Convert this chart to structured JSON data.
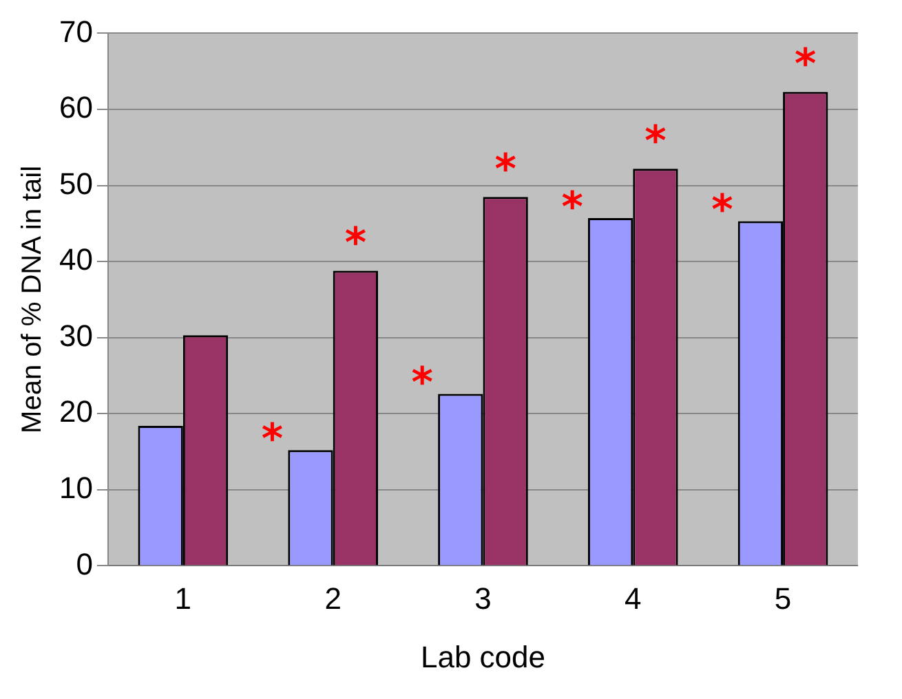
{
  "chart_data": {
    "type": "bar",
    "xlabel": "Lab code",
    "ylabel": "Mean of % DNA in tail",
    "categories": [
      "1",
      "2",
      "3",
      "4",
      "5"
    ],
    "series": [
      {
        "color": "#9999ff",
        "values": [
          18.4,
          15.2,
          22.6,
          45.7,
          45.3
        ]
      },
      {
        "color": "#993366",
        "values": [
          30.3,
          38.8,
          48.5,
          52.2,
          62.3
        ]
      }
    ],
    "ylim": [
      0,
      70
    ],
    "yticks": [
      0,
      10,
      20,
      30,
      40,
      50,
      60,
      70
    ],
    "grid": "y",
    "legend": false,
    "annotations": [
      {
        "text": "*",
        "x": "2",
        "y": 15.2
      },
      {
        "text": "*",
        "x": "2",
        "y": 38.8
      },
      {
        "text": "*",
        "x": "3",
        "y": 22.6
      },
      {
        "text": "*",
        "x": "3",
        "y": 48.5
      },
      {
        "text": "*",
        "x": "4",
        "y": 45.7
      },
      {
        "text": "*",
        "x": "4",
        "y": 52.2
      },
      {
        "text": "*",
        "x": "5",
        "y": 45.3
      },
      {
        "text": "*",
        "x": "5",
        "y": 62.3
      }
    ]
  }
}
